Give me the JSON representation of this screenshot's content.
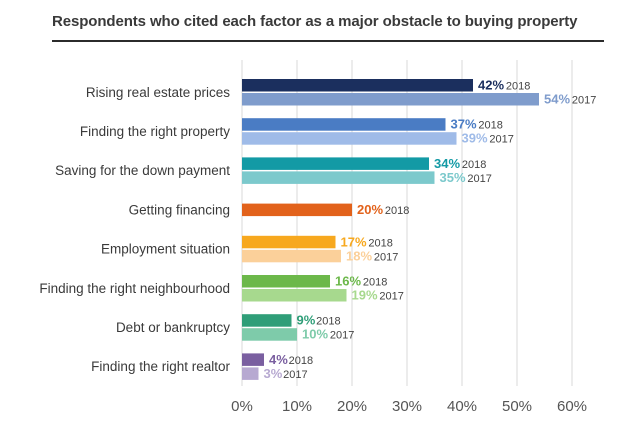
{
  "chart_data": {
    "type": "bar",
    "orientation": "horizontal",
    "title": "Respondents who cited each factor as a major obstacle to buying property",
    "categories": [
      "Rising real estate prices",
      "Finding the right property",
      "Saving for the down payment",
      "Getting financing",
      "Employment situation",
      "Finding the right neighbourhood",
      "Debt or bankruptcy",
      "Finding the right realtor"
    ],
    "series": [
      {
        "name": "2018",
        "values": [
          42,
          37,
          34,
          20,
          17,
          16,
          9,
          4
        ]
      },
      {
        "name": "2017",
        "values": [
          54,
          39,
          35,
          null,
          18,
          19,
          10,
          3
        ]
      }
    ],
    "value_labels": {
      "2018": [
        "42%",
        "37%",
        "34%",
        "20%",
        "17%",
        "16%",
        "9%",
        "4%"
      ],
      "2017": [
        "54%",
        "39%",
        "35%",
        "",
        "18%",
        "19%",
        "10%",
        "3%"
      ]
    },
    "colors": {
      "2018": [
        "#1b2f5e",
        "#4a7cc4",
        "#139aa5",
        "#e2621b",
        "#f7a81e",
        "#6cb84a",
        "#2f9e78",
        "#7a5fa0"
      ],
      "2017": [
        "#7f9ccc",
        "#9fbbe8",
        "#7cc9cc",
        null,
        "#fbd09a",
        "#a7d98e",
        "#7ecbaa",
        "#b7a9d1"
      ]
    },
    "x_ticks": [
      "0%",
      "10%",
      "20%",
      "30%",
      "40%",
      "50%",
      "60%"
    ],
    "xlim": [
      0,
      60
    ],
    "grid": true,
    "gridline_color": "#d9d9d9"
  }
}
